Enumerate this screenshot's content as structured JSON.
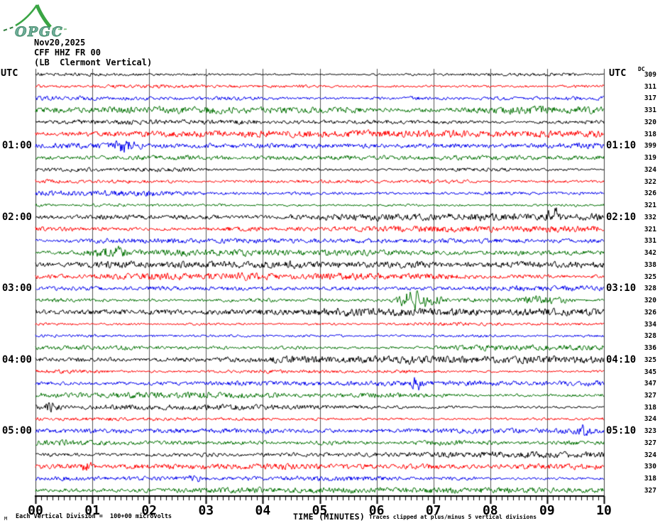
{
  "page": {
    "background": "#ffffff"
  },
  "logo": {
    "text": "OPGC",
    "curve_color": "#3aa544",
    "text_color": "#6fae9b"
  },
  "header": {
    "date": "Nov20,2025",
    "station": "CFF HHZ FR 00",
    "description": "(LB  Clermont Vertical)"
  },
  "plot": {
    "utc_left": "UTC",
    "utc_right": "UTC",
    "dc_header": "DC"
  },
  "axis": {
    "title": "TIME (MINUTES)",
    "tick_labels": [
      "00",
      "01",
      "02",
      "03",
      "04",
      "05",
      "06",
      "07",
      "08",
      "09",
      "10"
    ],
    "minor_per_major": 10
  },
  "footer": {
    "corner_mark": "M",
    "scale_note": "Each Vertical Division =  100+00 microvolts",
    "clip_note": "Traces clipped at plus/minus 5 vertical divisions"
  },
  "trace_colors": {
    "black": "#000000",
    "red": "#ff0000",
    "blue": "#0000ee",
    "green": "#007000"
  },
  "grid_color": "#555555",
  "chart_data": {
    "type": "helicorder",
    "title": "CFF HHZ FR 00 Nov20,2025 (LB Clermont Vertical)",
    "xlabel": "TIME (MINUTES)",
    "x_range_minutes": [
      0,
      10
    ],
    "lines": 36,
    "line_duration_minutes": 10,
    "amplitude_scale": "Each Vertical Division = 100+00 microvolts",
    "clipping": "plus/minus 5 vertical divisions",
    "rows": [
      {
        "utc_left": "",
        "utc_right": "",
        "dc": 309,
        "color": "black"
      },
      {
        "utc_left": "",
        "utc_right": "",
        "dc": 311,
        "color": "red"
      },
      {
        "utc_left": "",
        "utc_right": "",
        "dc": 317,
        "color": "blue"
      },
      {
        "utc_left": "",
        "utc_right": "",
        "dc": 331,
        "color": "green"
      },
      {
        "utc_left": "",
        "utc_right": "",
        "dc": 320,
        "color": "black"
      },
      {
        "utc_left": "",
        "utc_right": "",
        "dc": 318,
        "color": "red"
      },
      {
        "utc_left": "01:00",
        "utc_right": "01:10",
        "dc": 399,
        "color": "blue"
      },
      {
        "utc_left": "",
        "utc_right": "",
        "dc": 319,
        "color": "green"
      },
      {
        "utc_left": "",
        "utc_right": "",
        "dc": 324,
        "color": "black"
      },
      {
        "utc_left": "",
        "utc_right": "",
        "dc": 322,
        "color": "red"
      },
      {
        "utc_left": "",
        "utc_right": "",
        "dc": 326,
        "color": "blue"
      },
      {
        "utc_left": "",
        "utc_right": "",
        "dc": 321,
        "color": "green"
      },
      {
        "utc_left": "02:00",
        "utc_right": "02:10",
        "dc": 332,
        "color": "black"
      },
      {
        "utc_left": "",
        "utc_right": "",
        "dc": 321,
        "color": "red"
      },
      {
        "utc_left": "",
        "utc_right": "",
        "dc": 331,
        "color": "blue"
      },
      {
        "utc_left": "",
        "utc_right": "",
        "dc": 342,
        "color": "green"
      },
      {
        "utc_left": "",
        "utc_right": "",
        "dc": 338,
        "color": "black"
      },
      {
        "utc_left": "",
        "utc_right": "",
        "dc": 325,
        "color": "red"
      },
      {
        "utc_left": "03:00",
        "utc_right": "03:10",
        "dc": 328,
        "color": "blue"
      },
      {
        "utc_left": "",
        "utc_right": "",
        "dc": 320,
        "color": "green"
      },
      {
        "utc_left": "",
        "utc_right": "",
        "dc": 326,
        "color": "black"
      },
      {
        "utc_left": "",
        "utc_right": "",
        "dc": 334,
        "color": "red"
      },
      {
        "utc_left": "",
        "utc_right": "",
        "dc": 328,
        "color": "blue"
      },
      {
        "utc_left": "",
        "utc_right": "",
        "dc": 336,
        "color": "green"
      },
      {
        "utc_left": "04:00",
        "utc_right": "04:10",
        "dc": 325,
        "color": "black"
      },
      {
        "utc_left": "",
        "utc_right": "",
        "dc": 345,
        "color": "red"
      },
      {
        "utc_left": "",
        "utc_right": "",
        "dc": 347,
        "color": "blue"
      },
      {
        "utc_left": "",
        "utc_right": "",
        "dc": 327,
        "color": "green"
      },
      {
        "utc_left": "",
        "utc_right": "",
        "dc": 318,
        "color": "black"
      },
      {
        "utc_left": "",
        "utc_right": "",
        "dc": 324,
        "color": "red"
      },
      {
        "utc_left": "05:00",
        "utc_right": "05:10",
        "dc": 323,
        "color": "blue"
      },
      {
        "utc_left": "",
        "utc_right": "",
        "dc": 327,
        "color": "green"
      },
      {
        "utc_left": "",
        "utc_right": "",
        "dc": 324,
        "color": "black"
      },
      {
        "utc_left": "",
        "utc_right": "",
        "dc": 330,
        "color": "red"
      },
      {
        "utc_left": "",
        "utc_right": "",
        "dc": 318,
        "color": "blue"
      },
      {
        "utc_left": "",
        "utc_right": "",
        "dc": 327,
        "color": "green"
      }
    ],
    "events": [
      {
        "row": 7,
        "start_min": 1.35,
        "end_min": 1.85,
        "amp": 2.3
      },
      {
        "row": 13,
        "start_min": 9.0,
        "end_min": 9.2,
        "amp": 3.6
      },
      {
        "row": 16,
        "start_min": 0.95,
        "end_min": 1.7,
        "amp": 2.6
      },
      {
        "row": 20,
        "start_min": 6.3,
        "end_min": 7.15,
        "amp": 5.5
      },
      {
        "row": 20,
        "start_min": 7.2,
        "end_min": 8.4,
        "amp": 1.8
      },
      {
        "row": 20,
        "start_min": 8.55,
        "end_min": 9.45,
        "amp": 3.0
      },
      {
        "row": 27,
        "start_min": 6.6,
        "end_min": 6.85,
        "amp": 2.6
      },
      {
        "row": 29,
        "start_min": 0.0,
        "end_min": 0.45,
        "amp": 2.9
      },
      {
        "row": 31,
        "start_min": 9.5,
        "end_min": 9.8,
        "amp": 2.5
      },
      {
        "row": 34,
        "start_min": 0.8,
        "end_min": 1.0,
        "amp": 2.7
      },
      {
        "row": 35,
        "start_min": 2.3,
        "end_min": 3.1,
        "amp": 1.7
      }
    ]
  }
}
